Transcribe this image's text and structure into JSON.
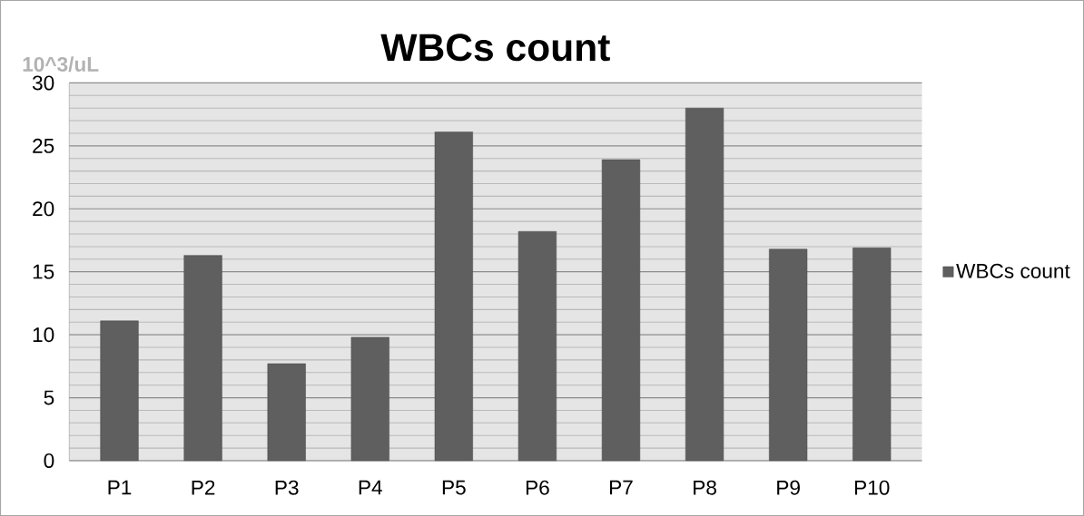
{
  "chart_data": {
    "type": "bar",
    "title": "WBCs count",
    "ylabel": "10^3/uL",
    "categories": [
      "P1",
      "P2",
      "P3",
      "P4",
      "P5",
      "P6",
      "P7",
      "P8",
      "P9",
      "P10"
    ],
    "series": [
      {
        "name": "WBCs count",
        "color": "#5f5f5f",
        "values": [
          11.1,
          16.3,
          7.7,
          9.8,
          26.1,
          18.2,
          23.9,
          28.0,
          16.8,
          16.9
        ]
      }
    ],
    "ylim": [
      0,
      30
    ],
    "yticks": [
      0,
      5,
      10,
      15,
      20,
      25,
      30
    ],
    "grid": "y",
    "legend": "right"
  }
}
